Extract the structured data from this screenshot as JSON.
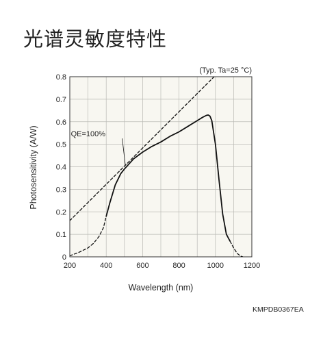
{
  "page": {
    "title": "光谱灵敏度特性",
    "figure_code": "KMPDB0367EA"
  },
  "chart_data": {
    "type": "line",
    "xlabel": "Wavelength (nm)",
    "ylabel": "Photosensitivity (A/W)",
    "xlim": [
      200,
      1200
    ],
    "ylim": [
      0,
      0.8
    ],
    "xticks": [
      200,
      400,
      600,
      800,
      1000,
      1200
    ],
    "yticks": [
      0,
      0.1,
      0.2,
      0.3,
      0.4,
      0.5,
      0.6,
      0.7,
      0.8
    ],
    "condition": "(Typ. Ta=25 °C)",
    "grid": true,
    "plot_background": "#f8f7f1",
    "series": [
      {
        "style": "solid",
        "x": [
          400,
          420,
          450,
          480,
          500,
          550,
          600,
          650,
          700,
          750,
          800,
          850,
          900,
          930,
          950,
          960,
          970,
          980,
          1000,
          1020,
          1040,
          1060,
          1080
        ],
        "y": [
          0.18,
          0.24,
          0.32,
          0.37,
          0.39,
          0.435,
          0.465,
          0.49,
          0.51,
          0.535,
          0.555,
          0.58,
          0.605,
          0.62,
          0.628,
          0.63,
          0.625,
          0.605,
          0.5,
          0.34,
          0.19,
          0.1,
          0.07
        ]
      },
      {
        "style": "dashed",
        "x": [
          200,
          250,
          300,
          330,
          360,
          385,
          400
        ],
        "y": [
          0.005,
          0.02,
          0.04,
          0.06,
          0.09,
          0.13,
          0.18
        ]
      },
      {
        "style": "dashed",
        "x": [
          1080,
          1100,
          1120,
          1140,
          1150
        ],
        "y": [
          0.07,
          0.04,
          0.015,
          0.003,
          0
        ]
      },
      {
        "name": "QE=100%",
        "style": "dashed",
        "x": [
          200,
          1200
        ],
        "y": [
          0.161,
          0.967
        ]
      }
    ],
    "annotations": [
      {
        "text": "QE=100%",
        "x": 300,
        "y": 0.535,
        "points_to": [
          520,
          0.42
        ]
      }
    ]
  }
}
